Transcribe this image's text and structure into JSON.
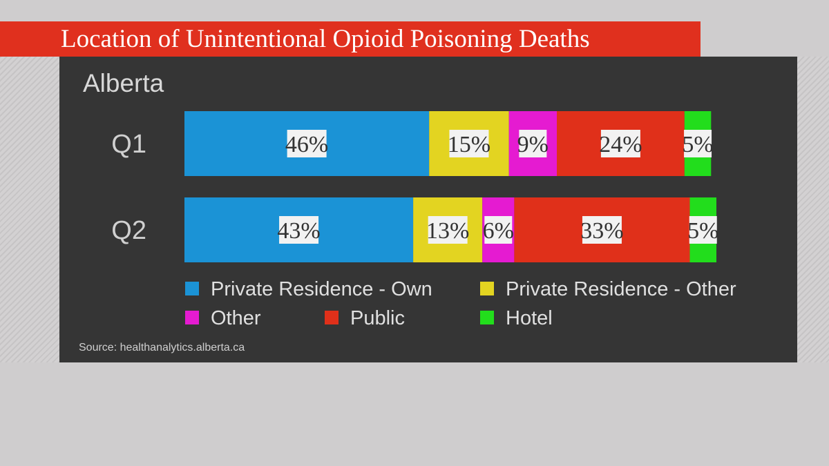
{
  "title": "Location of Unintentional Opioid Poisoning Deaths",
  "source": "Source: healthanalytics.alberta.ca",
  "chart_data": {
    "type": "bar",
    "orientation": "horizontal",
    "stacked": true,
    "subtitle": "Alberta",
    "categories": [
      "Q1",
      "Q2"
    ],
    "series": [
      {
        "name": "Private Residence - Own",
        "color": "#1b93d6",
        "values": [
          46,
          43
        ],
        "labels": [
          "46%",
          "43%"
        ]
      },
      {
        "name": "Private Residence - Other",
        "color": "#e3d421",
        "values": [
          15,
          13
        ],
        "labels": [
          "15%",
          "13%"
        ]
      },
      {
        "name": "Other",
        "color": "#e51bd1",
        "values": [
          9,
          6
        ],
        "labels": [
          "9%",
          "6%"
        ]
      },
      {
        "name": "Public",
        "color": "#e0301a",
        "values": [
          24,
          33
        ],
        "labels": [
          "24%",
          "33%"
        ]
      },
      {
        "name": "Hotel",
        "color": "#22dd1c",
        "values": [
          5,
          5
        ],
        "labels": [
          "5%",
          "5%"
        ]
      }
    ],
    "legend_order": [
      0,
      1,
      2,
      3,
      4
    ],
    "legend_position": "bottom",
    "grid": false,
    "xlim": [
      0,
      100
    ]
  }
}
